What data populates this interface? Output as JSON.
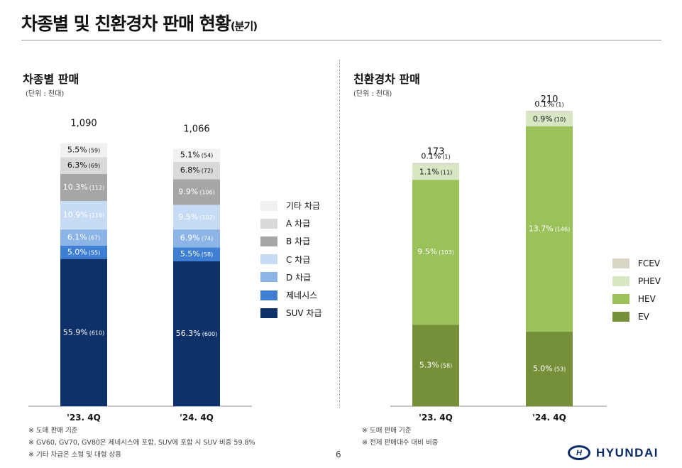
{
  "page_title": {
    "main": "차종별 및 친환경차 판매 현황",
    "suffix": "(분기)"
  },
  "left_section": {
    "title": "차종별 판매",
    "unit": "(단위 : 천대)"
  },
  "right_section": {
    "title": "친환경차 판매",
    "unit": "(단위 : 천대)"
  },
  "chart_data": [
    {
      "type": "bar",
      "stacked": true,
      "title": "차종별 판매",
      "unit": "(단위 : 천대)",
      "categories": [
        "'23. 4Q",
        "'24. 4Q"
      ],
      "totals": [
        "1,090",
        "1,066"
      ],
      "total_values": [
        1090,
        1066
      ],
      "series": [
        {
          "name": "SUV 차급",
          "color": "#0d3168",
          "values": [
            610,
            600
          ],
          "pct": [
            "55.9%",
            "56.3%"
          ],
          "labels": [
            "(610)",
            "(600)"
          ],
          "label_color": "#ffffff"
        },
        {
          "name": "제네시스",
          "color": "#3f7fd3",
          "values": [
            55,
            58
          ],
          "pct": [
            "5.0%",
            "5.5%"
          ],
          "labels": [
            "(55)",
            "(58)"
          ],
          "label_color": "#ffffff"
        },
        {
          "name": "D 차급",
          "color": "#8db4e6",
          "values": [
            67,
            74
          ],
          "pct": [
            "6.1%",
            "6.9%"
          ],
          "labels": [
            "(67)",
            "(74)"
          ],
          "label_color": "#ffffff"
        },
        {
          "name": "C 차급",
          "color": "#c6dbf4",
          "values": [
            118,
            102
          ],
          "pct": [
            "10.9%",
            "9.5%"
          ],
          "labels": [
            "(118)",
            "(102)"
          ],
          "label_color": "#ffffff"
        },
        {
          "name": "B 차급",
          "color": "#a6a6a6",
          "values": [
            112,
            106
          ],
          "pct": [
            "10.3%",
            "9.9%"
          ],
          "labels": [
            "(112)",
            "(106)"
          ],
          "label_color": "#ffffff"
        },
        {
          "name": "A 차급",
          "color": "#d9d9d9",
          "values": [
            69,
            72
          ],
          "pct": [
            "6.3%",
            "6.8%"
          ],
          "labels": [
            "(69)",
            "(72)"
          ],
          "label_color": "#111111"
        },
        {
          "name": "기타 차급",
          "color": "#f1f1f1",
          "values": [
            59,
            54
          ],
          "pct": [
            "5.5%",
            "5.1%"
          ],
          "labels": [
            "(59)",
            "(54)"
          ],
          "label_color": "#111111"
        }
      ],
      "legend_position": "right"
    },
    {
      "type": "bar",
      "stacked": true,
      "title": "친환경차 판매",
      "unit": "(단위 : 천대)",
      "categories": [
        "'23. 4Q",
        "'24. 4Q"
      ],
      "totals": [
        "173",
        "210"
      ],
      "total_values": [
        173,
        210
      ],
      "series": [
        {
          "name": "EV",
          "color": "#76903a",
          "values": [
            58,
            53
          ],
          "pct": [
            "5.3%",
            "5.0%"
          ],
          "labels": [
            "(58)",
            "(53)"
          ],
          "label_color": "#ffffff"
        },
        {
          "name": "HEV",
          "color": "#9bc15a",
          "values": [
            103,
            146
          ],
          "pct": [
            "9.5%",
            "13.7%"
          ],
          "labels": [
            "(103)",
            "(146)"
          ],
          "label_color": "#ffffff"
        },
        {
          "name": "PHEV",
          "color": "#d7e7c4",
          "values": [
            11,
            10
          ],
          "pct": [
            "1.1%",
            "0.9%"
          ],
          "labels": [
            "(11)",
            "(10)"
          ],
          "label_color": "#111111"
        },
        {
          "name": "FCEV",
          "color": "#d9d5c6",
          "values": [
            1,
            1
          ],
          "pct": [
            "0.1%",
            "0.1%"
          ],
          "labels": [
            "(1)",
            "(1)"
          ],
          "label_color": "#111111"
        }
      ],
      "legend_position": "right"
    }
  ],
  "footnotes_left": [
    "※ 도매 판매 기준",
    "※ GV60, GV70, GV80은 제네시스에 포함, SUV에 포함 시 SUV 비중 59.8%",
    "※ 기타 차급은 소형 및 대형 상용"
  ],
  "footnotes_right": [
    "※ 도매 판매 기준",
    "※ 전체 판매대수 대비 비중"
  ],
  "page_number": "6",
  "brand": {
    "mark": "H",
    "name": "HYUNDAI"
  },
  "colors": {
    "brand": "#0b2a66"
  }
}
